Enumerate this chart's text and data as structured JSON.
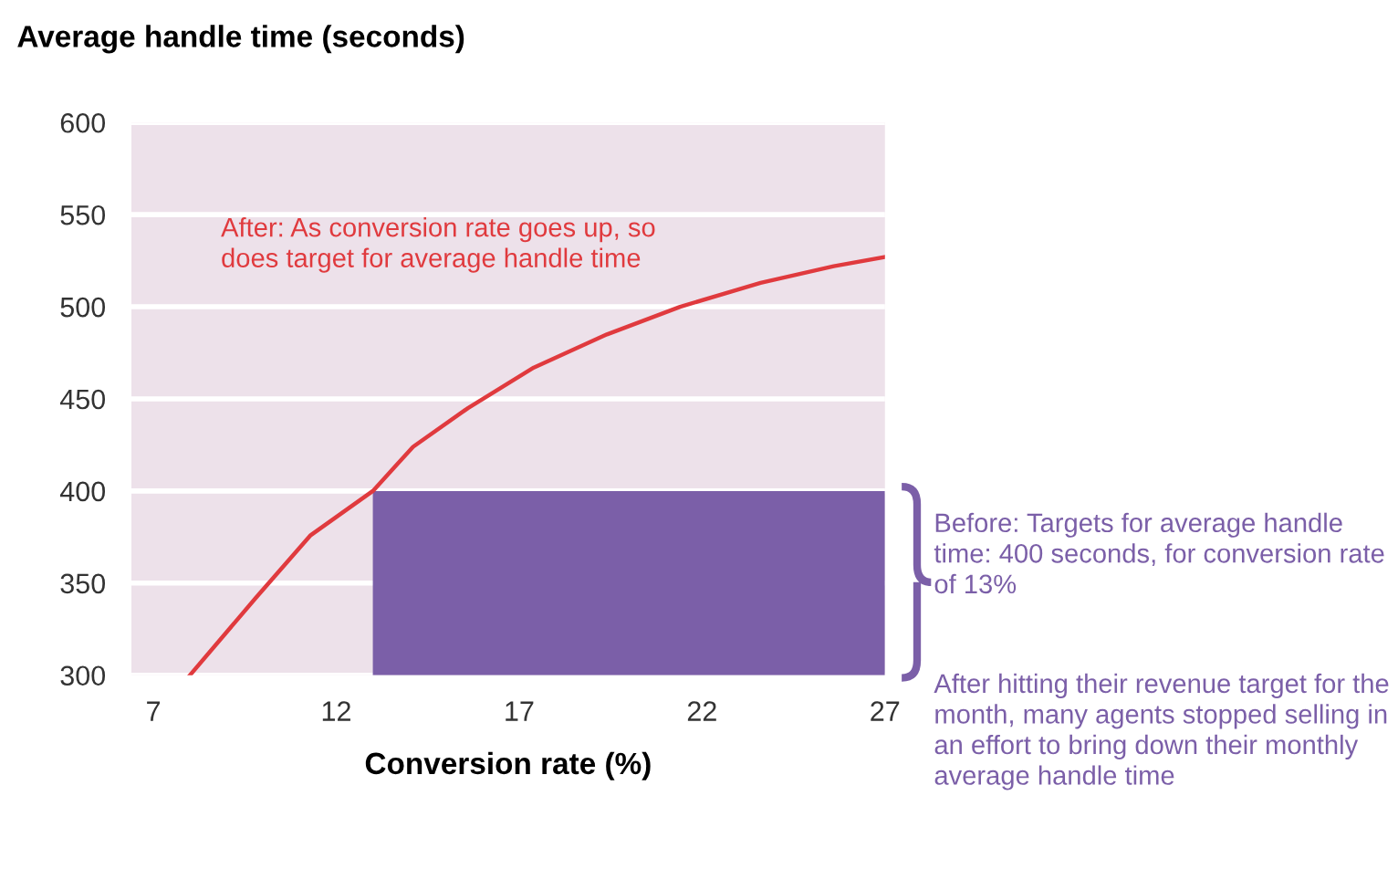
{
  "chart_data": {
    "type": "line",
    "ylabel": "Average handle time (seconds)",
    "xlabel": "Conversion rate (%)",
    "series": [
      {
        "type": "area",
        "color": "#7b5fa8",
        "x": [
          13,
          27
        ],
        "values": [
          400,
          400
        ]
      },
      {
        "type": "line",
        "color": "#e03a3e",
        "x": [
          8,
          9.8,
          11.3,
          13,
          14.1,
          15.6,
          17.4,
          19.4,
          21.4,
          23.6,
          25.6,
          27
        ],
        "values": [
          300,
          342,
          376,
          400,
          424,
          445,
          467,
          485,
          500,
          513,
          522,
          527
        ]
      }
    ],
    "xlim": [
      6.4,
      27
    ],
    "xticks": [
      7,
      12,
      17,
      22,
      27
    ],
    "ylim": [
      300,
      600
    ],
    "yticks": [
      300,
      350,
      400,
      450,
      500,
      550,
      600
    ],
    "grid": "y",
    "legend": false,
    "marker": "none",
    "line_style": "solid",
    "annotations": [
      "After: As conversion rate goes up, so does target for average handle time",
      "Before: Targets for average handle time: 400 seconds, for conversion rate of 13%",
      "After hitting their revenue target for the month, many agents stopped selling in an effort to bring down their monthly average handle time"
    ]
  }
}
